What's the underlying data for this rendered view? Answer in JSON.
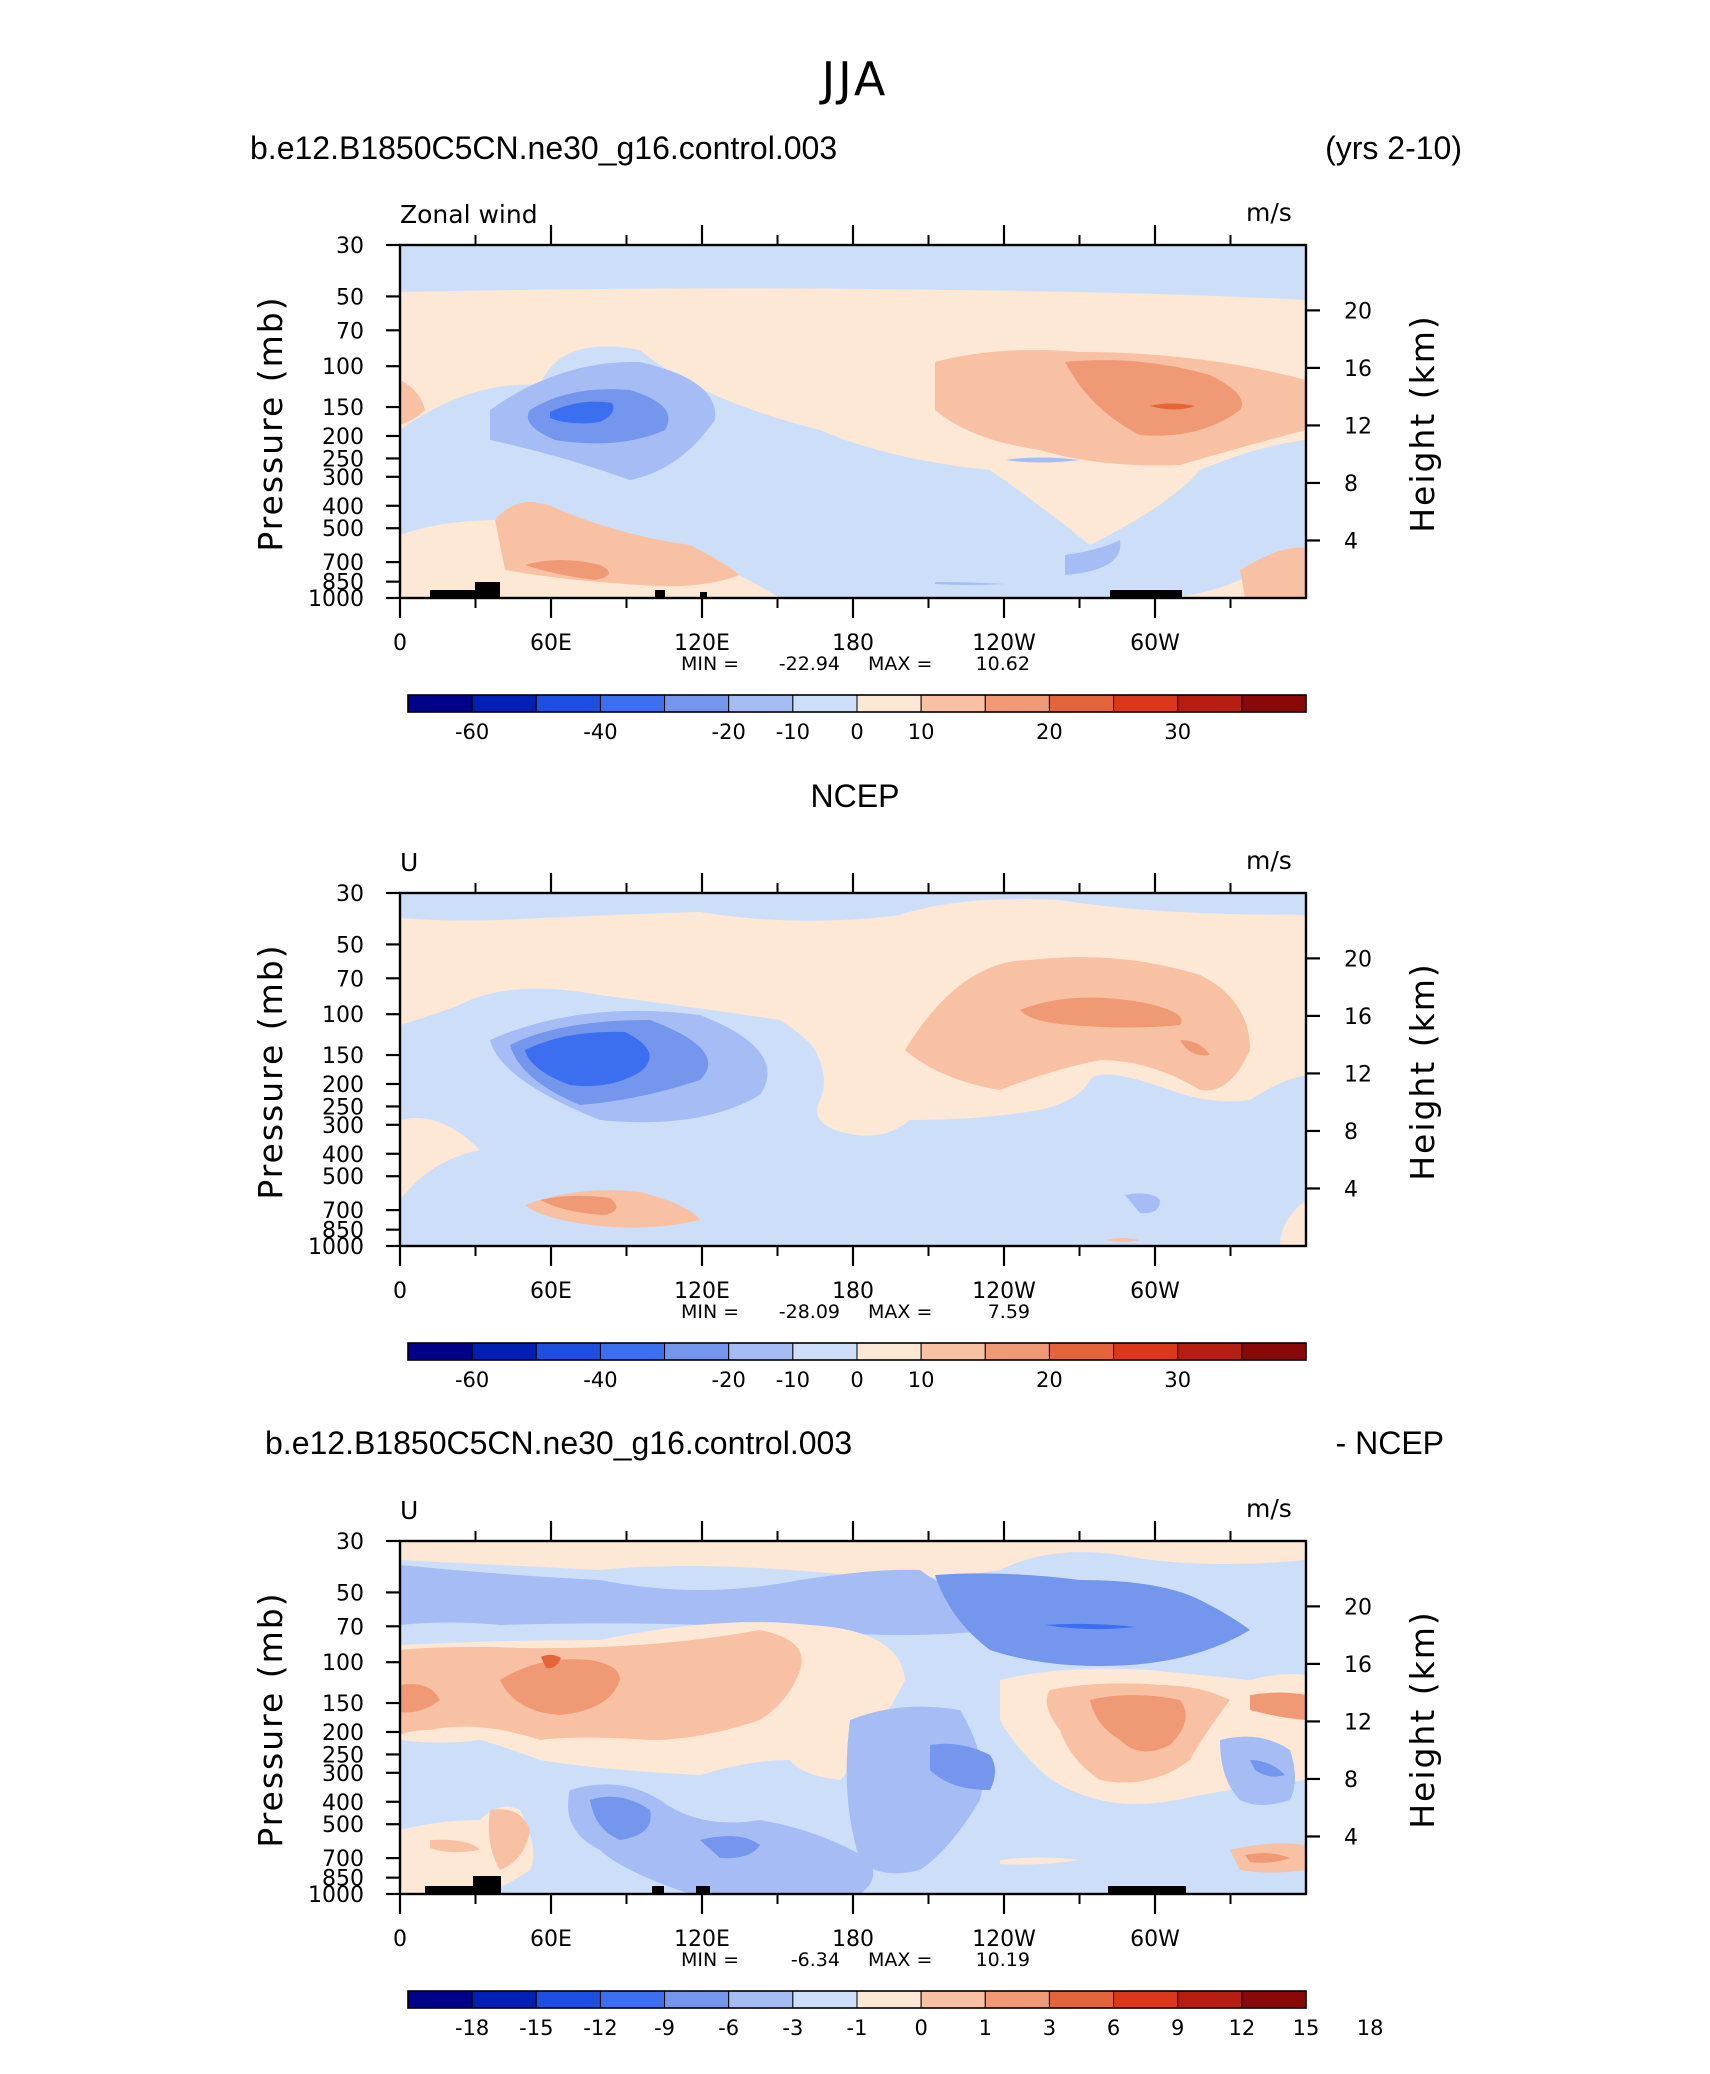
{
  "figure": {
    "title": "JJA",
    "panel1_left_title": "b.e12.B1850C5CN.ne30_g16.control.003",
    "panel1_right_title": "(yrs 2-10)",
    "panel2_title": "NCEP",
    "panel3_left_title": "b.e12.B1850C5CN.ne30_g16.control.003",
    "panel3_right_title": "- NCEP"
  },
  "chart_data": [
    {
      "type": "heatmap",
      "variable_label": "Zonal wind",
      "units": "m/s",
      "ylabel": "Pressure (mb)",
      "y2label": "Height (km)",
      "x_ticks": [
        "0",
        "60E",
        "120E",
        "180",
        "120W",
        "60W"
      ],
      "y_ticks": [
        "30",
        "50",
        "70",
        "100",
        "150",
        "200",
        "250",
        "300",
        "400",
        "500",
        "700",
        "850",
        "1000"
      ],
      "y_tick_values": [
        30,
        50,
        70,
        100,
        150,
        200,
        250,
        300,
        400,
        500,
        700,
        850,
        1000
      ],
      "y2_ticks": [
        "20",
        "16",
        "12",
        "8",
        "4"
      ],
      "y2_tick_values": [
        20,
        16,
        12,
        8,
        4
      ],
      "min_label": "MIN =",
      "min_value": "-22.94",
      "max_label": "MAX =",
      "max_value": "10.62",
      "colorbar_labels": [
        "-60",
        "-40",
        "-20",
        "-10",
        "0",
        "10",
        "20",
        "30"
      ],
      "colors": [
        "#00008a",
        "#0020b4",
        "#1e4ee0",
        "#3c6ef0",
        "#7496ec",
        "#a5bdf4",
        "#cddff8",
        "#fde8d6",
        "#f8c1a3",
        "#f09a75",
        "#e6643a",
        "#d9381a",
        "#b71e12",
        "#8a0808"
      ]
    },
    {
      "type": "heatmap",
      "variable_label": "U",
      "units": "m/s",
      "ylabel": "Pressure (mb)",
      "y2label": "Height (km)",
      "x_ticks": [
        "0",
        "60E",
        "120E",
        "180",
        "120W",
        "60W"
      ],
      "y_ticks": [
        "30",
        "50",
        "70",
        "100",
        "150",
        "200",
        "250",
        "300",
        "400",
        "500",
        "700",
        "850",
        "1000"
      ],
      "y_tick_values": [
        30,
        50,
        70,
        100,
        150,
        200,
        250,
        300,
        400,
        500,
        700,
        850,
        1000
      ],
      "y2_ticks": [
        "20",
        "16",
        "12",
        "8",
        "4"
      ],
      "y2_tick_values": [
        20,
        16,
        12,
        8,
        4
      ],
      "min_label": "MIN =",
      "min_value": "-28.09",
      "max_label": "MAX =",
      "max_value": "7.59",
      "colorbar_labels": [
        "-60",
        "-40",
        "-20",
        "-10",
        "0",
        "10",
        "20",
        "30"
      ],
      "colors": [
        "#00008a",
        "#0020b4",
        "#1e4ee0",
        "#3c6ef0",
        "#7496ec",
        "#a5bdf4",
        "#cddff8",
        "#fde8d6",
        "#f8c1a3",
        "#f09a75",
        "#e6643a",
        "#d9381a",
        "#b71e12",
        "#8a0808"
      ]
    },
    {
      "type": "heatmap",
      "variable_label": "U",
      "units": "m/s",
      "ylabel": "Pressure (mb)",
      "y2label": "Height (km)",
      "x_ticks": [
        "0",
        "60E",
        "120E",
        "180",
        "120W",
        "60W"
      ],
      "y_ticks": [
        "30",
        "50",
        "70",
        "100",
        "150",
        "200",
        "250",
        "300",
        "400",
        "500",
        "700",
        "850",
        "1000"
      ],
      "y_tick_values": [
        30,
        50,
        70,
        100,
        150,
        200,
        250,
        300,
        400,
        500,
        700,
        850,
        1000
      ],
      "y2_ticks": [
        "20",
        "16",
        "12",
        "8",
        "4"
      ],
      "y2_tick_values": [
        20,
        16,
        12,
        8,
        4
      ],
      "min_label": "MIN =",
      "min_value": "-6.34",
      "max_label": "MAX =",
      "max_value": "10.19",
      "colorbar_labels": [
        "-18",
        "-15",
        "-12",
        "-9",
        "-6",
        "-3",
        "-1",
        "0",
        "1",
        "3",
        "6",
        "9",
        "12",
        "15",
        "18"
      ],
      "colors": [
        "#00008a",
        "#0020b4",
        "#1e4ee0",
        "#3c6ef0",
        "#7496ec",
        "#a5bdf4",
        "#cddff8",
        "#fde8d6",
        "#f8c1a3",
        "#f09a75",
        "#e6643a",
        "#d9381a",
        "#b71e12",
        "#8a0808"
      ]
    }
  ]
}
